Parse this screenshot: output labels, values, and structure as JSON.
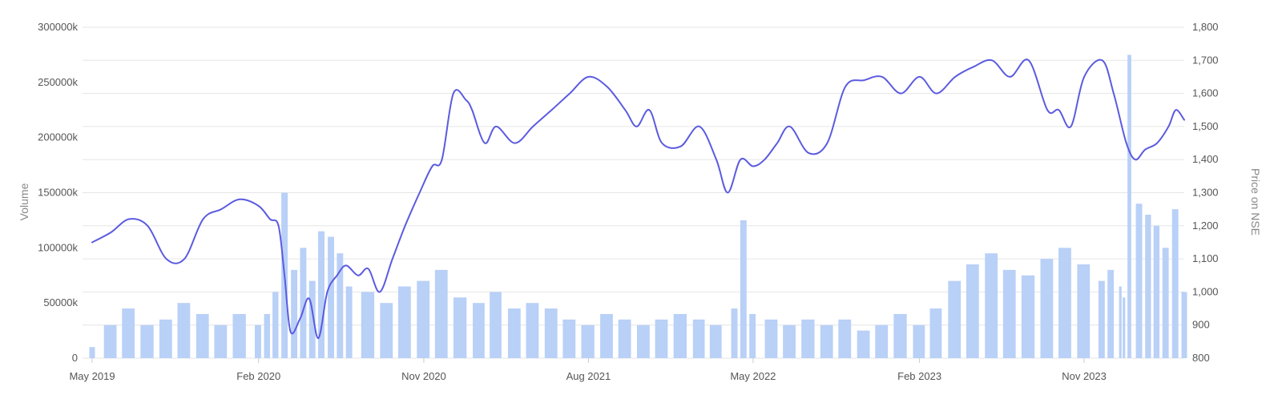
{
  "chart_data": {
    "type": "bar+line",
    "y_left": {
      "label": "Volume",
      "ylim": [
        0,
        300000000
      ],
      "ticks": [
        0,
        50000000,
        100000000,
        150000000,
        200000000,
        250000000,
        300000000
      ],
      "tick_labels": [
        "0",
        "50000k",
        "100000k",
        "150000k",
        "200000k",
        "250000k",
        "300000k"
      ]
    },
    "y_right": {
      "label": "Price on NSE",
      "ylim": [
        800,
        1800
      ],
      "ticks": [
        800,
        900,
        1000,
        1100,
        1200,
        1300,
        1400,
        1500,
        1600,
        1700,
        1800
      ],
      "tick_labels": [
        "800",
        "900",
        "1,000",
        "1,100",
        "1,200",
        "1,300",
        "1,400",
        "1,500",
        "1,600",
        "1,700",
        "1,800"
      ]
    },
    "x_axis": {
      "range": [
        "2019-05-01",
        "2024-04-15"
      ],
      "ticks": [
        "2019-05-01",
        "2020-02-01",
        "2020-11-01",
        "2021-08-01",
        "2022-05-01",
        "2023-02-01",
        "2023-11-01"
      ],
      "tick_labels": [
        "May 2019",
        "Feb 2020",
        "Nov 2020",
        "Aug 2021",
        "May 2022",
        "Feb 2023",
        "Nov 2023"
      ]
    },
    "grid": true,
    "legend": "none",
    "series": [
      {
        "kind": "bar",
        "axis": "left",
        "color": "#b9d0f7",
        "x": [
          "2019-05-01",
          "2019-05-31",
          "2019-06-30",
          "2019-07-31",
          "2019-08-31",
          "2019-09-30",
          "2019-10-31",
          "2019-11-30",
          "2019-12-31",
          "2020-01-31",
          "2020-02-15",
          "2020-02-29",
          "2020-03-15",
          "2020-03-31",
          "2020-04-15",
          "2020-04-30",
          "2020-05-15",
          "2020-05-31",
          "2020-06-15",
          "2020-06-30",
          "2020-07-31",
          "2020-08-31",
          "2020-09-30",
          "2020-10-31",
          "2020-11-30",
          "2020-12-31",
          "2021-01-31",
          "2021-02-28",
          "2021-03-31",
          "2021-04-30",
          "2021-05-31",
          "2021-06-30",
          "2021-07-31",
          "2021-08-31",
          "2021-09-30",
          "2021-10-31",
          "2021-11-30",
          "2021-12-31",
          "2022-01-31",
          "2022-02-28",
          "2022-03-31",
          "2022-04-15",
          "2022-04-30",
          "2022-05-31",
          "2022-06-30",
          "2022-07-31",
          "2022-08-31",
          "2022-09-30",
          "2022-10-31",
          "2022-11-30",
          "2022-12-31",
          "2023-01-31",
          "2023-02-28",
          "2023-03-31",
          "2023-04-30",
          "2023-05-31",
          "2023-06-30",
          "2023-07-31",
          "2023-08-31",
          "2023-09-30",
          "2023-10-31",
          "2023-11-30",
          "2023-12-15",
          "2023-12-31",
          "2024-01-06",
          "2024-01-15",
          "2024-01-31",
          "2024-02-15",
          "2024-02-29",
          "2024-03-15",
          "2024-03-31",
          "2024-04-15"
        ],
        "values": [
          10000000,
          30000000,
          45000000,
          30000000,
          35000000,
          50000000,
          40000000,
          30000000,
          40000000,
          30000000,
          40000000,
          60000000,
          150000000,
          80000000,
          100000000,
          70000000,
          115000000,
          110000000,
          95000000,
          65000000,
          60000000,
          50000000,
          65000000,
          70000000,
          80000000,
          55000000,
          50000000,
          60000000,
          45000000,
          50000000,
          45000000,
          35000000,
          30000000,
          40000000,
          35000000,
          30000000,
          35000000,
          40000000,
          35000000,
          30000000,
          45000000,
          125000000,
          40000000,
          35000000,
          30000000,
          35000000,
          30000000,
          35000000,
          25000000,
          30000000,
          40000000,
          30000000,
          45000000,
          70000000,
          85000000,
          95000000,
          80000000,
          75000000,
          90000000,
          100000000,
          85000000,
          70000000,
          80000000,
          65000000,
          55000000,
          275000000,
          140000000,
          130000000,
          120000000,
          100000000,
          135000000,
          60000000
        ]
      },
      {
        "kind": "line",
        "axis": "right",
        "color": "#5b5be0",
        "x": [
          "2019-05-01",
          "2019-06-01",
          "2019-07-01",
          "2019-08-01",
          "2019-09-01",
          "2019-10-01",
          "2019-11-01",
          "2019-12-01",
          "2020-01-01",
          "2020-02-01",
          "2020-02-20",
          "2020-03-05",
          "2020-03-15",
          "2020-03-25",
          "2020-04-10",
          "2020-04-25",
          "2020-05-10",
          "2020-05-25",
          "2020-06-10",
          "2020-06-25",
          "2020-07-15",
          "2020-08-01",
          "2020-08-20",
          "2020-09-10",
          "2020-10-01",
          "2020-10-25",
          "2020-11-15",
          "2020-12-01",
          "2020-12-20",
          "2021-01-10",
          "2021-01-20",
          "2021-02-10",
          "2021-03-01",
          "2021-04-01",
          "2021-05-01",
          "2021-06-01",
          "2021-07-01",
          "2021-08-01",
          "2021-09-01",
          "2021-10-01",
          "2021-10-20",
          "2021-11-10",
          "2021-12-01",
          "2022-01-01",
          "2022-02-01",
          "2022-03-01",
          "2022-03-20",
          "2022-04-10",
          "2022-05-01",
          "2022-05-20",
          "2022-06-10",
          "2022-07-01",
          "2022-08-01",
          "2022-09-01",
          "2022-10-01",
          "2022-11-01",
          "2022-12-01",
          "2023-01-01",
          "2023-02-01",
          "2023-03-01",
          "2023-04-01",
          "2023-05-01",
          "2023-06-01",
          "2023-07-01",
          "2023-08-01",
          "2023-09-01",
          "2023-09-20",
          "2023-10-10",
          "2023-11-01",
          "2023-12-01",
          "2023-12-20",
          "2024-01-10",
          "2024-01-25",
          "2024-02-10",
          "2024-03-01",
          "2024-03-20",
          "2024-04-01",
          "2024-04-15"
        ],
        "values": [
          1150,
          1180,
          1220,
          1200,
          1100,
          1100,
          1220,
          1250,
          1280,
          1260,
          1220,
          1200,
          1050,
          880,
          920,
          980,
          860,
          1000,
          1050,
          1080,
          1050,
          1070,
          1000,
          1100,
          1200,
          1300,
          1380,
          1400,
          1600,
          1580,
          1550,
          1450,
          1500,
          1450,
          1500,
          1550,
          1600,
          1650,
          1620,
          1550,
          1500,
          1550,
          1450,
          1440,
          1500,
          1400,
          1300,
          1400,
          1380,
          1400,
          1450,
          1500,
          1420,
          1450,
          1620,
          1640,
          1650,
          1600,
          1650,
          1600,
          1650,
          1680,
          1700,
          1650,
          1700,
          1550,
          1550,
          1500,
          1650,
          1700,
          1600,
          1450,
          1400,
          1430,
          1450,
          1500,
          1550,
          1520
        ]
      }
    ]
  }
}
